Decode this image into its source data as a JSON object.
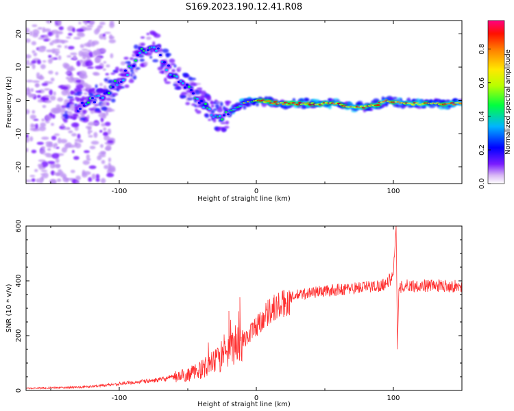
{
  "figure": {
    "title": "S169.2023.190.12.41.R08"
  },
  "chart_data": [
    {
      "type": "heatmap",
      "description_of_content": "Spectral amplitude vs height and frequency",
      "xlabel": "Height of straight line (km)",
      "ylabel": "Frequency (Hz)",
      "xlim": [
        -168,
        150
      ],
      "ylim": [
        -25,
        24
      ],
      "x_ticks": [
        -100,
        0,
        100
      ],
      "y_ticks": [
        -20,
        -10,
        0,
        10,
        20
      ],
      "colorbar": {
        "label": "Normalized spectral amplitude",
        "range": [
          0,
          0.97
        ],
        "ticks": [
          0.0,
          0.2,
          0.4,
          0.6,
          0.8
        ],
        "colormap": "rainbow",
        "colors": [
          "#ffffff",
          "#b98cf2",
          "#6a00ff",
          "#0000ff",
          "#00c8ff",
          "#00ff40",
          "#c8ff00",
          "#ffee00",
          "#ff8000",
          "#ff0000",
          "#ff0080"
        ]
      },
      "ridge": {
        "x": [
          -130,
          -110,
          -95,
          -85,
          -75,
          -65,
          -55,
          -45,
          -35,
          -25,
          -10,
          0,
          20,
          40,
          60,
          70,
          80,
          90,
          95,
          110,
          130,
          150
        ],
        "y": [
          -2,
          2,
          8,
          14,
          17,
          10,
          5,
          2,
          -3,
          -5,
          -1,
          0,
          -1,
          -1,
          -1,
          -2,
          -2,
          -1,
          0,
          -1,
          -1,
          -1
        ]
      },
      "noise_region_x": [
        -168,
        -120
      ]
    },
    {
      "type": "line",
      "xlabel": "Height of straight line (km)",
      "ylabel": "SNR (10 * v/v)",
      "xlim": [
        -168,
        150
      ],
      "ylim": [
        0,
        600
      ],
      "x_ticks": [
        -100,
        0,
        100
      ],
      "y_ticks": [
        0,
        200,
        400,
        600
      ],
      "grid": false,
      "color": "#ff3030",
      "series": [
        {
          "x": [
            -168,
            -150,
            -130,
            -120,
            -110,
            -100,
            -90,
            -80,
            -70,
            -60,
            -50,
            -40,
            -30,
            -20,
            -15,
            -10,
            -5,
            0,
            5,
            10,
            20,
            25,
            30,
            40,
            50,
            60,
            70,
            80,
            90,
            95,
            100,
            102,
            103,
            104,
            106,
            110,
            120,
            130,
            140,
            150
          ],
          "values": [
            8,
            10,
            12,
            15,
            20,
            25,
            30,
            35,
            40,
            50,
            60,
            80,
            110,
            140,
            180,
            190,
            210,
            240,
            270,
            300,
            320,
            340,
            350,
            360,
            365,
            370,
            375,
            380,
            385,
            395,
            420,
            600,
            160,
            370,
            380,
            385,
            385,
            385,
            385,
            380
          ]
        }
      ],
      "spikes": [
        {
          "x": -20,
          "value": 290
        },
        {
          "x": -12,
          "value": 340
        },
        {
          "x": -35,
          "value": 175
        },
        {
          "x": 102,
          "value": 600
        },
        {
          "x": 103,
          "value": 150
        }
      ]
    }
  ]
}
